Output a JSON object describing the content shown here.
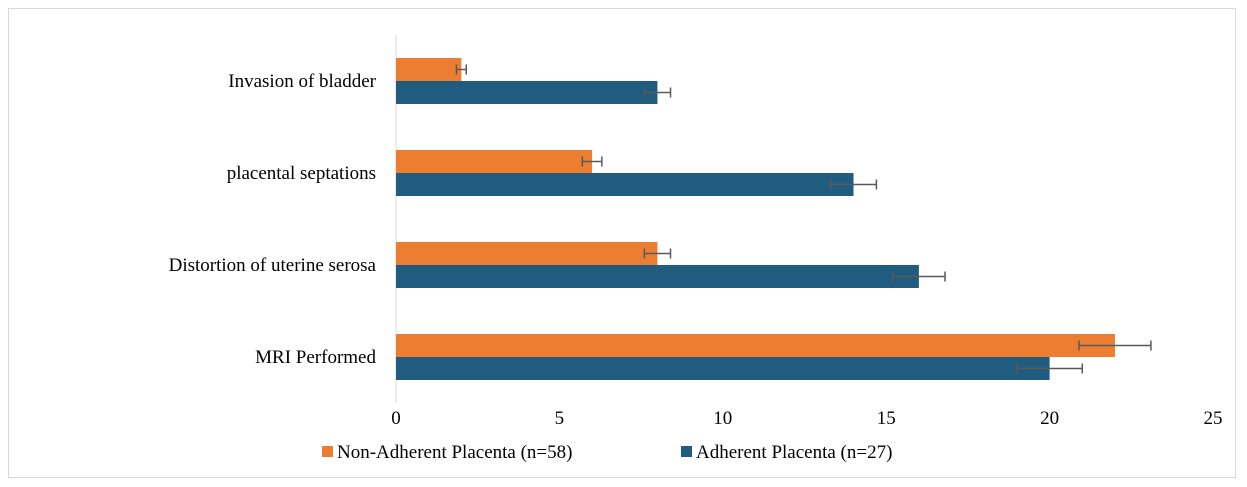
{
  "chart_data": {
    "type": "bar",
    "orientation": "horizontal",
    "categories": [
      "Invasion of bladder",
      "placental septations",
      "Distortion of uterine serosa",
      "MRI Performed"
    ],
    "series": [
      {
        "name": "Non-Adherent Placenta (n=58)",
        "color": "#ED7D31",
        "values": [
          2,
          6,
          8,
          22
        ],
        "error": [
          0.15,
          0.3,
          0.4,
          1.1
        ]
      },
      {
        "name": "Adherent Placenta (n=27)",
        "color": "#1F5C80",
        "values": [
          8,
          14,
          16,
          20
        ],
        "error": [
          0.4,
          0.7,
          0.8,
          1.0
        ]
      }
    ],
    "xlim": [
      0,
      25
    ],
    "xticks": [
      "0",
      "5",
      "10",
      "15",
      "20",
      "25"
    ],
    "grid": false,
    "legend": "bottom",
    "error_bars": true
  }
}
